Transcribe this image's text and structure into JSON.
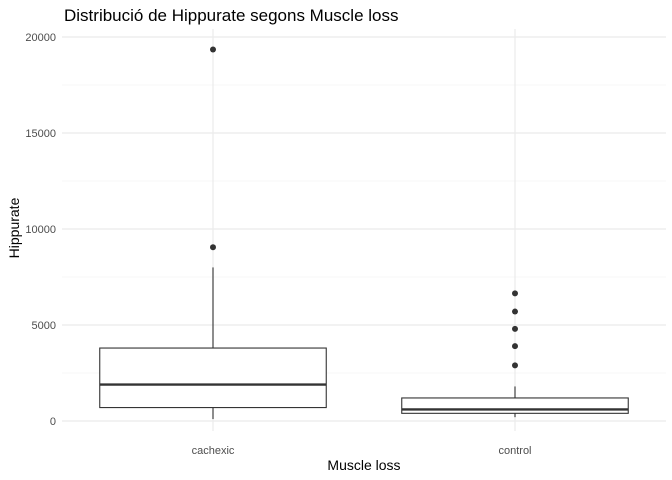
{
  "chart_data": {
    "type": "boxplot",
    "title": "Distribució de Hippurate segons Muscle loss",
    "xlabel": "Muscle loss",
    "ylabel": "Hippurate",
    "categories": [
      "cachexic",
      "control"
    ],
    "ylim": [
      0,
      21000
    ],
    "yticks": [
      0,
      5000,
      10000,
      15000,
      20000
    ],
    "ytick_labels": [
      "0",
      "5000",
      "10000",
      "15000",
      "20000"
    ],
    "grid": true,
    "legend": "none",
    "boxes": [
      {
        "category": "cachexic",
        "whisker_low": 100,
        "q1": 700,
        "median": 1900,
        "q3": 3800,
        "whisker_high": 8000,
        "outliers": [
          9050,
          19350
        ]
      },
      {
        "category": "control",
        "whisker_low": 200,
        "q1": 400,
        "median": 600,
        "q3": 1200,
        "whisker_high": 1800,
        "outliers": [
          2900,
          3900,
          4800,
          5700,
          6650
        ]
      }
    ],
    "colors": {
      "box_stroke": "#333333",
      "grid_major": "#ebebeb",
      "grid_minor": "#f4f4f4",
      "outlier": "#333333"
    }
  }
}
